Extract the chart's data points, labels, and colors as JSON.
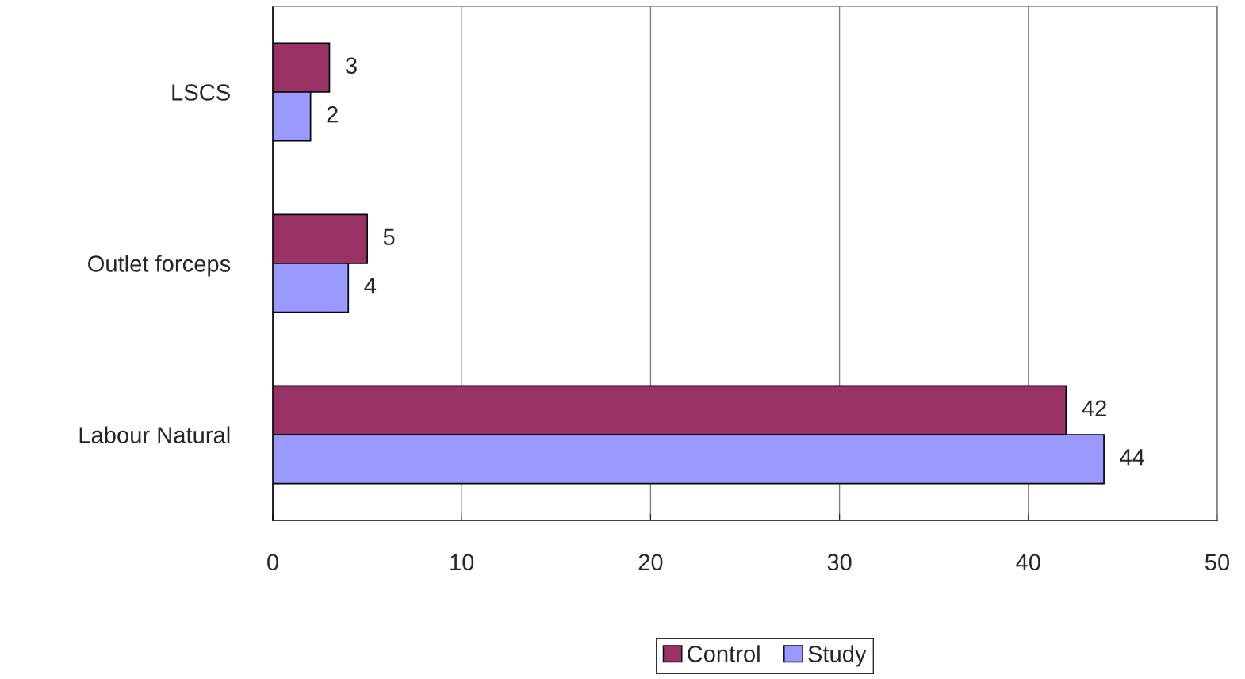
{
  "chart_data": {
    "type": "bar",
    "orientation": "horizontal",
    "categories": [
      "LSCS",
      "Outlet forceps",
      "Labour Natural"
    ],
    "series": [
      {
        "name": "Control",
        "color": "#993366",
        "values": [
          3,
          5,
          42
        ]
      },
      {
        "name": "Study",
        "color": "#9999ff",
        "values": [
          2,
          4,
          44
        ]
      }
    ],
    "xlim": [
      0,
      50
    ],
    "xticks": [
      0,
      10,
      20,
      30,
      40,
      50
    ],
    "grid": "x",
    "legend": "bottom",
    "data_labels": true
  }
}
